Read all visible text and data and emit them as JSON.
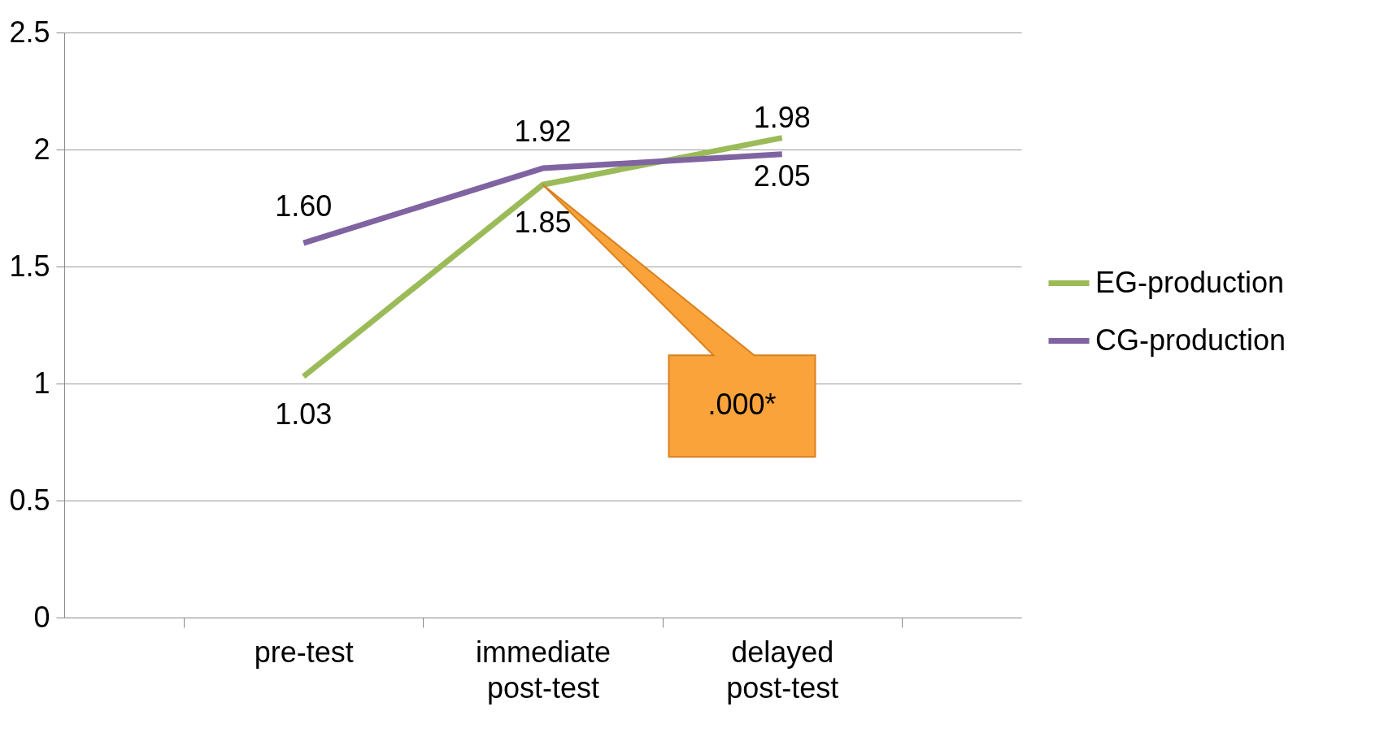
{
  "chart_data": {
    "type": "line",
    "categories": [
      "pre-test",
      "immediate post-test",
      "delayed post-test"
    ],
    "series": [
      {
        "name": "EG-production",
        "color": "#9bbb59",
        "values": [
          1.03,
          1.85,
          2.05
        ],
        "value_labels": [
          "1.03",
          "1.85",
          "2.05"
        ]
      },
      {
        "name": "CG-production",
        "color": "#8064a2",
        "values": [
          1.6,
          1.92,
          1.98
        ],
        "value_labels": [
          "1.60",
          "1.92",
          "1.98"
        ]
      }
    ],
    "ylim": [
      0,
      2.5
    ],
    "yticks": [
      0,
      0.5,
      1,
      1.5,
      2,
      2.5
    ],
    "grid": "y",
    "legend": "right",
    "marker": "none",
    "line_style": "solid",
    "annotations": [
      ".000*"
    ]
  }
}
